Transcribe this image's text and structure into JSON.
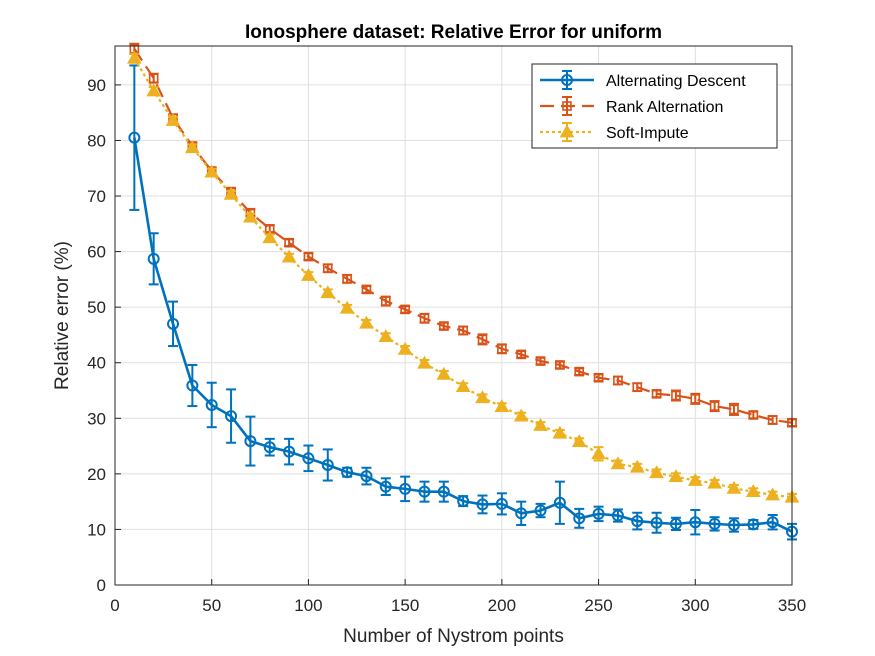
{
  "chart_data": {
    "type": "line",
    "title": "Ionosphere dataset: Relative Error for uniform",
    "xlabel": "Number of Nystrom points",
    "ylabel": "Relative error (%)",
    "xlim": [
      0,
      350
    ],
    "ylim": [
      0,
      97
    ],
    "xticks": [
      0,
      50,
      100,
      150,
      200,
      250,
      300,
      350
    ],
    "yticks": [
      0,
      10,
      20,
      30,
      40,
      50,
      60,
      70,
      80,
      90
    ],
    "grid": true,
    "legend_position": "top-right",
    "x": [
      10,
      20,
      30,
      40,
      50,
      60,
      70,
      80,
      90,
      100,
      110,
      120,
      130,
      140,
      150,
      160,
      170,
      180,
      190,
      200,
      210,
      220,
      230,
      240,
      250,
      260,
      270,
      280,
      290,
      300,
      310,
      320,
      330,
      340,
      350
    ],
    "series": [
      {
        "name": "Alternating Descent",
        "color": "#0072BD",
        "line_style": "solid",
        "marker": "circle",
        "values": [
          80.5,
          58.7,
          47.0,
          35.9,
          32.4,
          30.4,
          25.9,
          24.8,
          24.0,
          22.8,
          21.6,
          20.3,
          19.6,
          17.7,
          17.3,
          16.8,
          16.8,
          15.1,
          14.5,
          14.6,
          12.9,
          13.4,
          14.8,
          12.0,
          12.8,
          12.5,
          11.5,
          11.2,
          11.0,
          11.3,
          11.0,
          10.8,
          10.9,
          11.3,
          9.6
        ],
        "errors": [
          13.0,
          4.6,
          4.0,
          3.7,
          4.0,
          4.8,
          4.4,
          1.5,
          2.3,
          2.3,
          2.8,
          0.8,
          1.5,
          1.5,
          2.2,
          1.8,
          1.8,
          0.9,
          1.6,
          1.9,
          2.1,
          1.2,
          3.8,
          1.7,
          1.3,
          1.1,
          1.5,
          1.8,
          1.1,
          2.2,
          1.2,
          1.2,
          0.8,
          1.3,
          1.4
        ]
      },
      {
        "name": "Rank Alternation",
        "color": "#D95319",
        "line_style": "dashed",
        "marker": "square",
        "values": [
          96.5,
          91.2,
          84.0,
          79.0,
          74.5,
          70.8,
          67.0,
          64.1,
          61.6,
          59.1,
          57.0,
          55.1,
          53.2,
          51.1,
          49.6,
          48.0,
          46.6,
          45.8,
          44.2,
          42.5,
          41.5,
          40.3,
          39.6,
          38.4,
          37.3,
          36.8,
          35.6,
          34.4,
          34.1,
          33.5,
          32.2,
          31.6,
          30.6,
          29.7,
          29.2
        ],
        "errors": [
          0.9,
          0.8,
          0.7,
          0.6,
          0.6,
          0.6,
          0.6,
          0.6,
          0.6,
          0.6,
          0.7,
          0.7,
          0.6,
          0.8,
          0.6,
          0.8,
          0.6,
          0.7,
          0.9,
          0.8,
          0.6,
          0.6,
          0.6,
          0.6,
          0.6,
          0.7,
          0.7,
          0.6,
          0.9,
          0.9,
          0.9,
          1.0,
          0.6,
          0.7,
          0.6
        ]
      },
      {
        "name": "Soft-Impute",
        "color": "#EDB120",
        "line_style": "dotted",
        "marker": "triangle",
        "values": [
          94.8,
          88.9,
          83.6,
          78.7,
          74.3,
          70.3,
          66.2,
          62.5,
          59.0,
          55.7,
          52.6,
          49.8,
          47.1,
          44.7,
          42.4,
          39.9,
          37.9,
          35.7,
          33.7,
          32.1,
          30.4,
          28.7,
          27.3,
          25.8,
          23.6,
          21.8,
          21.2,
          20.2,
          19.5,
          18.8,
          18.3,
          17.4,
          16.8,
          16.2,
          15.8
        ],
        "errors": [
          0.8,
          0.7,
          0.6,
          0.6,
          0.6,
          0.6,
          0.6,
          0.6,
          0.6,
          0.6,
          0.6,
          0.6,
          0.6,
          0.6,
          0.6,
          0.6,
          0.6,
          0.6,
          0.6,
          0.6,
          0.6,
          0.6,
          0.6,
          0.6,
          1.2,
          0.6,
          0.6,
          0.6,
          0.6,
          0.6,
          0.6,
          0.6,
          0.6,
          0.6,
          0.6
        ]
      }
    ]
  }
}
